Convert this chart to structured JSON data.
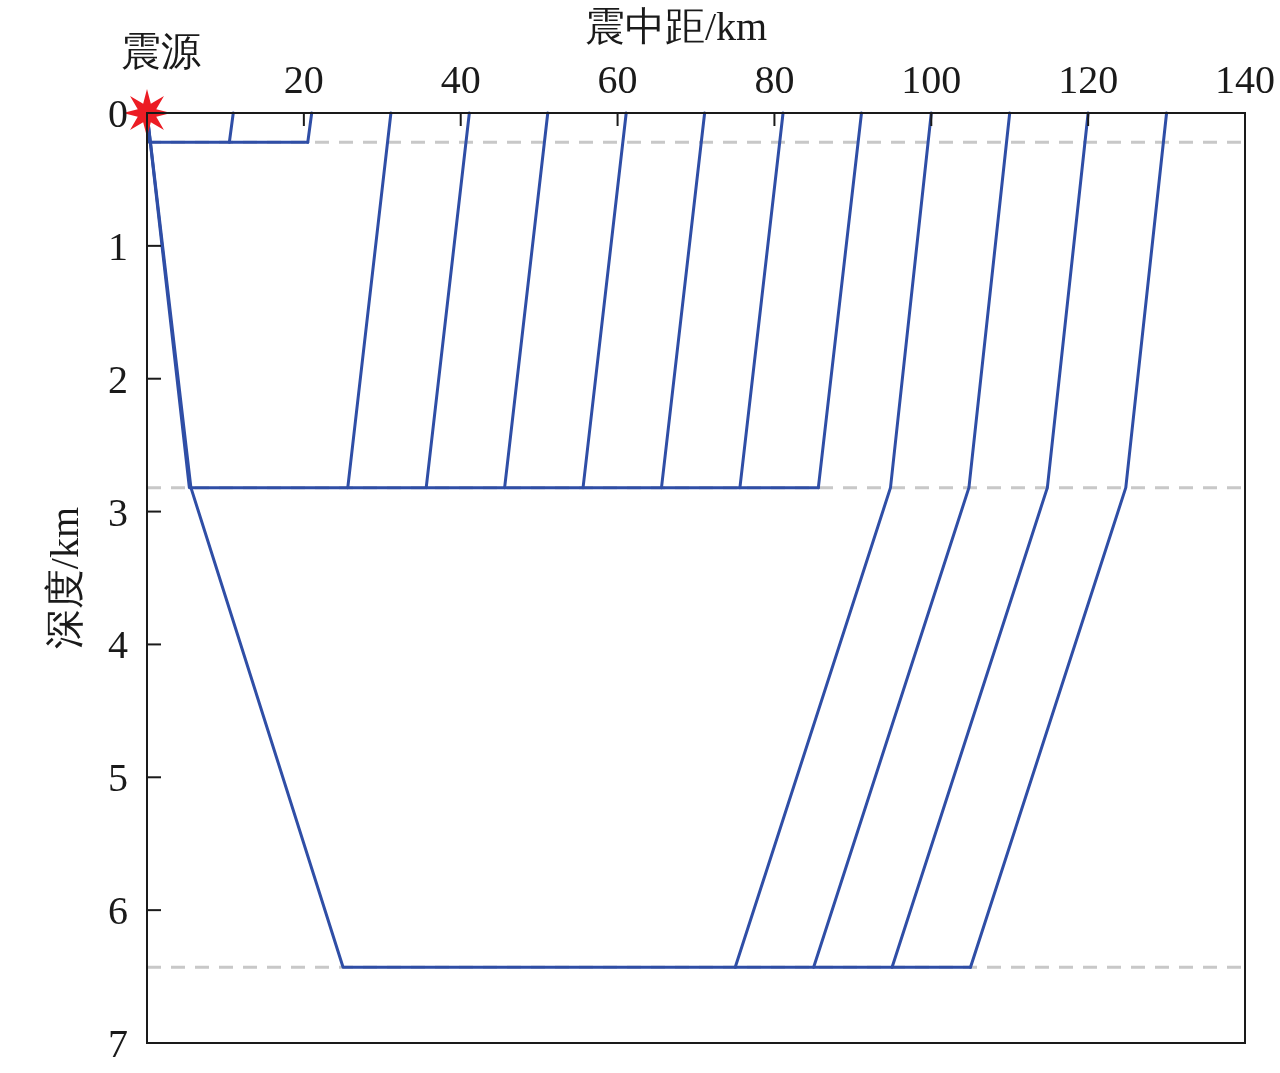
{
  "chart_data": {
    "type": "line",
    "xlabel": "震中距/km",
    "ylabel": "深度/km",
    "xlim": [
      0,
      140
    ],
    "xticks": [
      {
        "value": 0,
        "label": null
      },
      20,
      40,
      60,
      80,
      100,
      120,
      140
    ],
    "ylim": [
      7,
      0
    ],
    "yticks": [
      0,
      1,
      2,
      3,
      4,
      5,
      6,
      7
    ],
    "ref_lines": [
      {
        "axis": "y",
        "value": 0.22,
        "color": "#c8c8c8",
        "line_style": "dashed"
      },
      {
        "axis": "y",
        "value": 2.82,
        "color": "#c8c8c8",
        "line_style": "dashed"
      },
      {
        "axis": "y",
        "value": 6.43,
        "color": "#c8c8c8",
        "line_style": "dashed"
      }
    ],
    "annotations": [
      {
        "text": "震源",
        "x": 0,
        "y": 0
      }
    ],
    "series": [
      {
        "color": "#2f4ea6",
        "x": [
          0,
          0.3,
          20.5
        ],
        "values": [
          0,
          0.22,
          0.22
        ]
      },
      {
        "color": "#2f4ea6",
        "x": [
          10.5,
          11.0
        ],
        "values": [
          0.22,
          0
        ]
      },
      {
        "color": "#2f4ea6",
        "x": [
          20.5,
          21.0
        ],
        "values": [
          0.22,
          0
        ]
      },
      {
        "color": "#2f4ea6",
        "x": [
          0,
          5.4,
          85.6
        ],
        "values": [
          0,
          2.82,
          2.82
        ]
      },
      {
        "color": "#2f4ea6",
        "x": [
          25.6,
          31.1
        ],
        "values": [
          2.82,
          0
        ]
      },
      {
        "color": "#2f4ea6",
        "x": [
          35.6,
          41.1
        ],
        "values": [
          2.82,
          0
        ]
      },
      {
        "color": "#2f4ea6",
        "x": [
          45.6,
          51.1
        ],
        "values": [
          2.82,
          0
        ]
      },
      {
        "color": "#2f4ea6",
        "x": [
          55.6,
          61.1
        ],
        "values": [
          2.82,
          0
        ]
      },
      {
        "color": "#2f4ea6",
        "x": [
          65.6,
          71.1
        ],
        "values": [
          2.82,
          0
        ]
      },
      {
        "color": "#2f4ea6",
        "x": [
          75.6,
          81.1
        ],
        "values": [
          2.82,
          0
        ]
      },
      {
        "color": "#2f4ea6",
        "x": [
          85.6,
          91.1
        ],
        "values": [
          2.82,
          0
        ]
      },
      {
        "color": "#2f4ea6",
        "x": [
          0,
          5.6,
          25.0,
          105.0
        ],
        "values": [
          0,
          2.82,
          6.43,
          6.43
        ]
      },
      {
        "color": "#2f4ea6",
        "x": [
          75.0,
          94.8,
          100.0
        ],
        "values": [
          6.43,
          2.82,
          0
        ]
      },
      {
        "color": "#2f4ea6",
        "x": [
          85.0,
          104.8,
          110.0
        ],
        "values": [
          6.43,
          2.82,
          0
        ]
      },
      {
        "color": "#2f4ea6",
        "x": [
          95.0,
          114.8,
          120.0
        ],
        "values": [
          6.43,
          2.82,
          0
        ]
      },
      {
        "color": "#2f4ea6",
        "x": [
          105.0,
          124.8,
          130.0
        ],
        "values": [
          6.43,
          2.82,
          0
        ]
      },
      {
        "type": "scatter",
        "color": "#ec1c24",
        "marker": "star",
        "x": [
          0
        ],
        "values": [
          0
        ]
      }
    ]
  }
}
